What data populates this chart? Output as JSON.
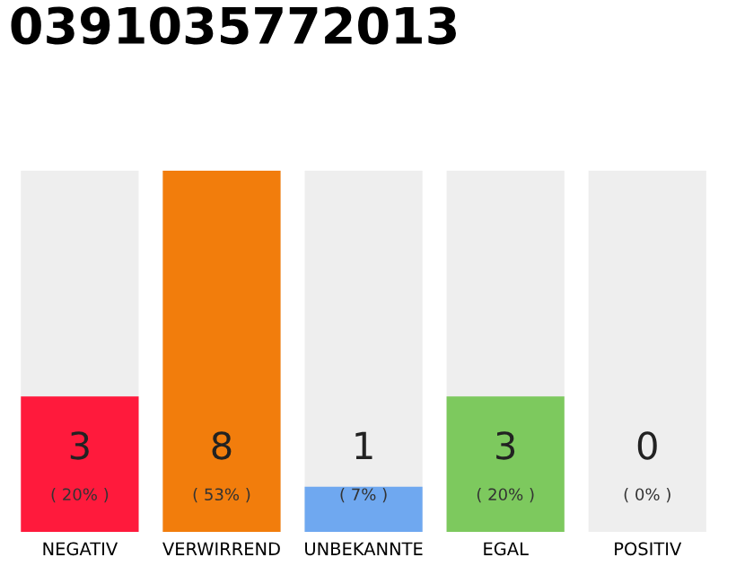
{
  "chart_data": {
    "type": "bar",
    "title": "0391035772013",
    "categories": [
      "NEGATIV",
      "VERWIRREND",
      "UNBEKANNTE",
      "EGAL",
      "POSITIV"
    ],
    "values": [
      3,
      8,
      1,
      3,
      0
    ],
    "colors": [
      "#ff1a3c",
      "#f27d0c",
      "#6fa8f0",
      "#7dc95e",
      "#cccccc"
    ],
    "ylim": [
      0,
      8
    ],
    "data_labels": true,
    "annotations": [
      "( 20% )",
      "( 53% )",
      "( 7% )",
      "( 20% )",
      "( 0% )"
    ],
    "bands": [
      {
        "axis": "y",
        "from": 0,
        "to": 8,
        "color": "#eeeeee"
      }
    ],
    "grid": false,
    "legend": false
  }
}
